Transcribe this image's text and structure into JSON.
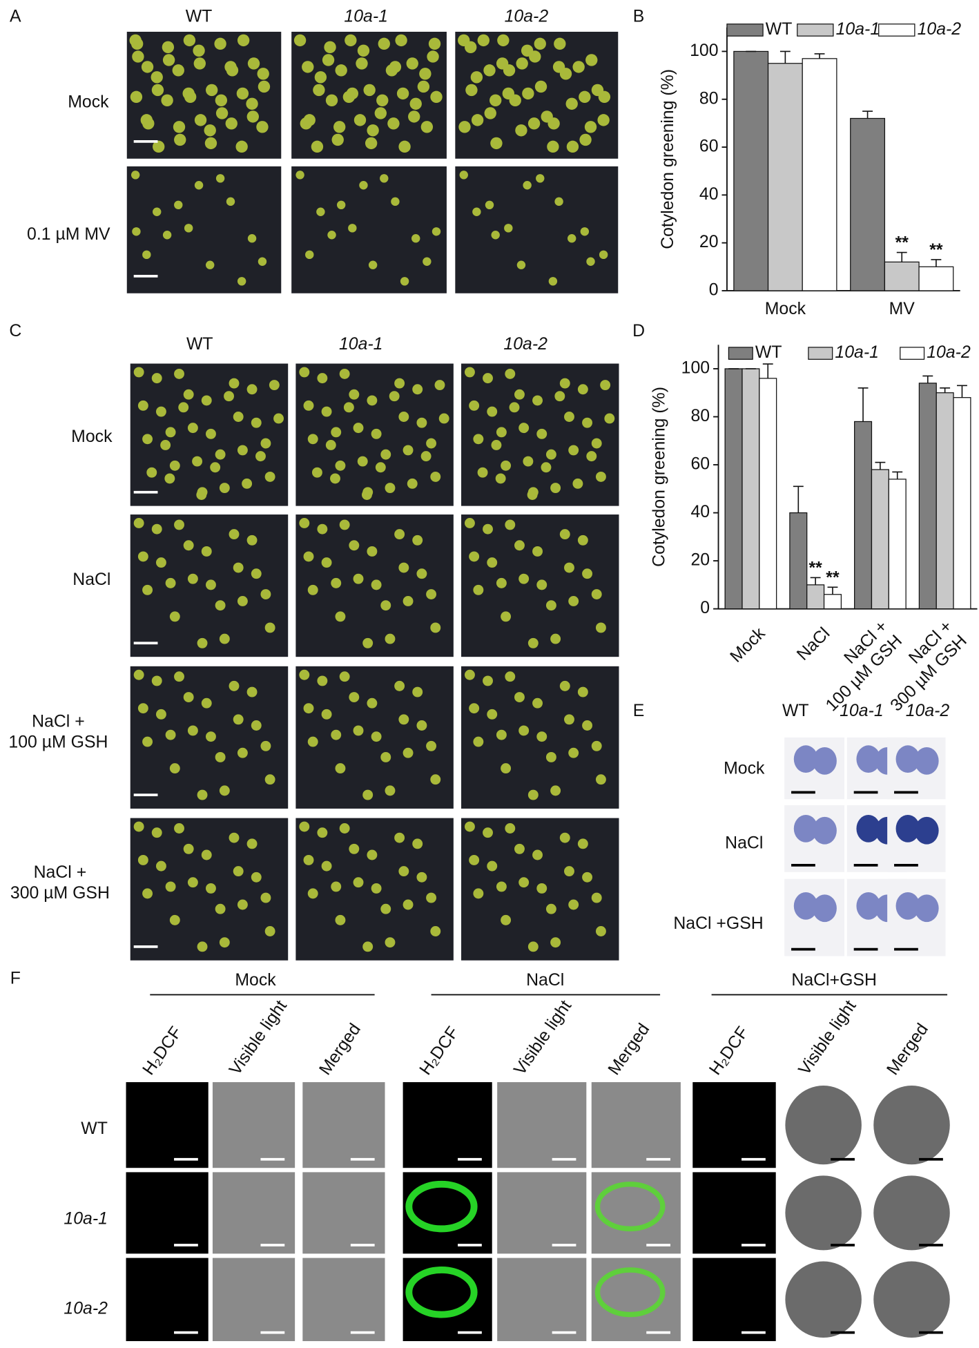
{
  "panel_labels": [
    "A",
    "B",
    "C",
    "D",
    "E",
    "F"
  ],
  "panel_a": {
    "columns": [
      "WT",
      "10a-1",
      "10a-2"
    ],
    "rows": [
      "Mock",
      "0.1 µM MV"
    ]
  },
  "chart_data": [
    {
      "type": "bar",
      "y_label": "Cotyledon greening (%)",
      "categories": [
        "Mock",
        "MV"
      ],
      "series": [
        {
          "name": "WT",
          "color": "#7f7f7f",
          "values": [
            100,
            72
          ],
          "errors": [
            0,
            3
          ],
          "annotations": [
            null,
            null
          ]
        },
        {
          "name": "10a-1",
          "color": "#c8c8c8",
          "values": [
            95,
            12
          ],
          "errors": [
            5,
            4
          ],
          "annotations": [
            null,
            "**"
          ]
        },
        {
          "name": "10a-2",
          "color": "#ffffff",
          "values": [
            97,
            10
          ],
          "errors": [
            2,
            3
          ],
          "annotations": [
            null,
            "**"
          ]
        }
      ],
      "ylim": [
        0,
        110
      ],
      "yticks": [
        0,
        20,
        40,
        60,
        80,
        100
      ]
    },
    {
      "type": "bar",
      "y_label": "Cotyledon greening (%)",
      "categories": [
        "Mock",
        "NaCl",
        "NaCl +\n100 µM GSH",
        "NaCl +\n300 µM GSH"
      ],
      "series": [
        {
          "name": "WT",
          "color": "#7f7f7f",
          "values": [
            100,
            40,
            78,
            94
          ],
          "errors": [
            0,
            11,
            14,
            3
          ],
          "annotations": [
            null,
            null,
            null,
            null
          ]
        },
        {
          "name": "10a-1",
          "color": "#c8c8c8",
          "values": [
            100,
            10,
            58,
            90
          ],
          "errors": [
            0,
            3,
            3,
            2
          ],
          "annotations": [
            null,
            "**",
            null,
            null
          ]
        },
        {
          "name": "10a-2",
          "color": "#ffffff",
          "values": [
            96,
            6,
            54,
            88
          ],
          "errors": [
            6,
            3,
            3,
            5
          ],
          "annotations": [
            null,
            "**",
            null,
            null
          ]
        }
      ],
      "ylim": [
        0,
        110
      ],
      "yticks": [
        0,
        20,
        40,
        60,
        80,
        100
      ]
    }
  ],
  "panel_c": {
    "columns": [
      "WT",
      "10a-1",
      "10a-2"
    ],
    "rows": [
      "Mock",
      "NaCl",
      "NaCl +\n100 µM GSH",
      "NaCl +\n300 µM GSH"
    ]
  },
  "panel_e": {
    "columns": [
      "WT",
      "10a-1",
      "10a-2"
    ],
    "rows": [
      "Mock",
      "NaCl",
      "NaCl +GSH"
    ]
  },
  "panel_f": {
    "groups": [
      "Mock",
      "NaCl",
      "NaCl+GSH"
    ],
    "columns": [
      "H₂DCF",
      "Visible light",
      "Merged"
    ],
    "rows": [
      "WT",
      "10a-1",
      "10a-2"
    ]
  }
}
